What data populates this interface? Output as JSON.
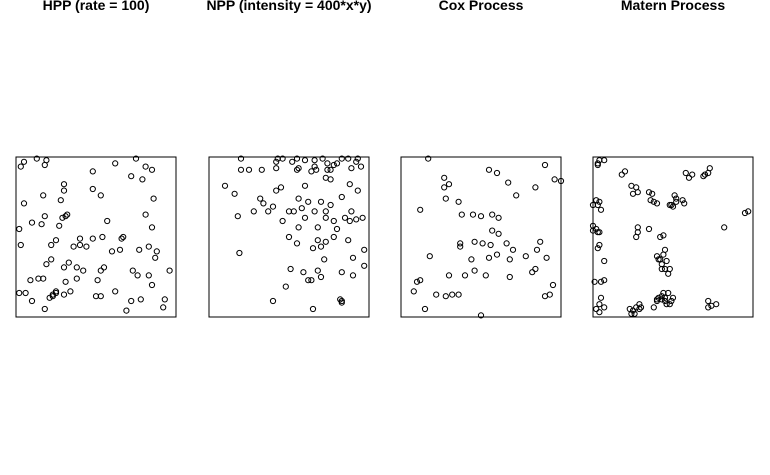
{
  "chart_data": [
    {
      "type": "scatter",
      "title": "HPP (rate = 100)",
      "xlim": [
        0,
        1
      ],
      "ylim": [
        0,
        1
      ],
      "points": [
        [
          0.05,
          0.97
        ],
        [
          0.03,
          0.94
        ],
        [
          0.13,
          0.99
        ],
        [
          0.18,
          0.95
        ],
        [
          0.19,
          0.98
        ],
        [
          0.48,
          0.91
        ],
        [
          0.62,
          0.96
        ],
        [
          0.75,
          0.99
        ],
        [
          0.81,
          0.94
        ],
        [
          0.85,
          0.92
        ],
        [
          0.79,
          0.86
        ],
        [
          0.72,
          0.88
        ],
        [
          0.3,
          0.83
        ],
        [
          0.3,
          0.79
        ],
        [
          0.48,
          0.8
        ],
        [
          0.53,
          0.76
        ],
        [
          0.17,
          0.76
        ],
        [
          0.05,
          0.71
        ],
        [
          0.28,
          0.73
        ],
        [
          0.86,
          0.74
        ],
        [
          0.81,
          0.64
        ],
        [
          0.31,
          0.63
        ],
        [
          0.29,
          0.62
        ],
        [
          0.18,
          0.63
        ],
        [
          0.32,
          0.64
        ],
        [
          0.1,
          0.59
        ],
        [
          0.27,
          0.57
        ],
        [
          0.16,
          0.58
        ],
        [
          0.57,
          0.6
        ],
        [
          0.02,
          0.55
        ],
        [
          0.85,
          0.56
        ],
        [
          0.25,
          0.48
        ],
        [
          0.48,
          0.49
        ],
        [
          0.54,
          0.5
        ],
        [
          0.03,
          0.45
        ],
        [
          0.44,
          0.44
        ],
        [
          0.6,
          0.41
        ],
        [
          0.65,
          0.42
        ],
        [
          0.4,
          0.45
        ],
        [
          0.66,
          0.49
        ],
        [
          0.4,
          0.49
        ],
        [
          0.67,
          0.5
        ],
        [
          0.38,
          0.31
        ],
        [
          0.53,
          0.29
        ],
        [
          0.83,
          0.44
        ],
        [
          0.88,
          0.41
        ],
        [
          0.77,
          0.42
        ],
        [
          0.36,
          0.44
        ],
        [
          0.22,
          0.36
        ],
        [
          0.22,
          0.45
        ],
        [
          0.87,
          0.37
        ],
        [
          0.19,
          0.33
        ],
        [
          0.33,
          0.34
        ],
        [
          0.3,
          0.31
        ],
        [
          0.42,
          0.29
        ],
        [
          0.55,
          0.31
        ],
        [
          0.85,
          0.2
        ],
        [
          0.83,
          0.26
        ],
        [
          0.73,
          0.29
        ],
        [
          0.96,
          0.29
        ],
        [
          0.76,
          0.26
        ],
        [
          0.17,
          0.24
        ],
        [
          0.38,
          0.24
        ],
        [
          0.51,
          0.23
        ],
        [
          0.09,
          0.23
        ],
        [
          0.14,
          0.24
        ],
        [
          0.34,
          0.16
        ],
        [
          0.31,
          0.22
        ],
        [
          0.06,
          0.15
        ],
        [
          0.23,
          0.13
        ],
        [
          0.25,
          0.15
        ],
        [
          0.21,
          0.12
        ],
        [
          0.23,
          0.14
        ],
        [
          0.3,
          0.14
        ],
        [
          0.25,
          0.16
        ],
        [
          0.5,
          0.13
        ],
        [
          0.53,
          0.13
        ],
        [
          0.62,
          0.16
        ],
        [
          0.72,
          0.1
        ],
        [
          0.78,
          0.11
        ],
        [
          0.1,
          0.1
        ],
        [
          0.18,
          0.05
        ],
        [
          0.69,
          0.04
        ],
        [
          0.92,
          0.06
        ],
        [
          0.93,
          0.11
        ],
        [
          0.02,
          0.15
        ]
      ]
    },
    {
      "type": "scatter",
      "title": "NPP (intensity = 400*x*y)",
      "xlim": [
        0,
        1
      ],
      "ylim": [
        0,
        1
      ],
      "points": [
        [
          0.2,
          0.99
        ],
        [
          0.42,
          0.97
        ],
        [
          0.43,
          0.99
        ],
        [
          0.46,
          0.99
        ],
        [
          0.52,
          0.97
        ],
        [
          0.55,
          0.99
        ],
        [
          0.6,
          0.98
        ],
        [
          0.66,
          0.98
        ],
        [
          0.71,
          0.99
        ],
        [
          0.74,
          0.96
        ],
        [
          0.78,
          0.95
        ],
        [
          0.8,
          0.96
        ],
        [
          0.83,
          0.99
        ],
        [
          0.87,
          0.99
        ],
        [
          0.93,
          0.99
        ],
        [
          0.95,
          0.94
        ],
        [
          0.89,
          0.93
        ],
        [
          0.56,
          0.93
        ],
        [
          0.33,
          0.92
        ],
        [
          0.25,
          0.92
        ],
        [
          0.2,
          0.92
        ],
        [
          0.42,
          0.93
        ],
        [
          0.66,
          0.94
        ],
        [
          0.67,
          0.92
        ],
        [
          0.64,
          0.91
        ],
        [
          0.55,
          0.92
        ],
        [
          0.74,
          0.92
        ],
        [
          0.76,
          0.92
        ],
        [
          0.92,
          0.97
        ],
        [
          0.76,
          0.86
        ],
        [
          0.73,
          0.87
        ],
        [
          0.45,
          0.81
        ],
        [
          0.6,
          0.82
        ],
        [
          0.56,
          0.74
        ],
        [
          0.42,
          0.79
        ],
        [
          0.1,
          0.82
        ],
        [
          0.16,
          0.77
        ],
        [
          0.34,
          0.71
        ],
        [
          0.4,
          0.69
        ],
        [
          0.37,
          0.66
        ],
        [
          0.28,
          0.66
        ],
        [
          0.32,
          0.74
        ],
        [
          0.58,
          0.68
        ],
        [
          0.62,
          0.72
        ],
        [
          0.5,
          0.66
        ],
        [
          0.53,
          0.66
        ],
        [
          0.7,
          0.72
        ],
        [
          0.76,
          0.7
        ],
        [
          0.83,
          0.75
        ],
        [
          0.88,
          0.83
        ],
        [
          0.93,
          0.79
        ],
        [
          0.6,
          0.62
        ],
        [
          0.66,
          0.66
        ],
        [
          0.73,
          0.66
        ],
        [
          0.73,
          0.62
        ],
        [
          0.78,
          0.6
        ],
        [
          0.85,
          0.62
        ],
        [
          0.88,
          0.6
        ],
        [
          0.92,
          0.61
        ],
        [
          0.96,
          0.62
        ],
        [
          0.89,
          0.66
        ],
        [
          0.18,
          0.63
        ],
        [
          0.46,
          0.6
        ],
        [
          0.56,
          0.56
        ],
        [
          0.68,
          0.56
        ],
        [
          0.78,
          0.5
        ],
        [
          0.8,
          0.55
        ],
        [
          0.87,
          0.48
        ],
        [
          0.97,
          0.42
        ],
        [
          0.5,
          0.5
        ],
        [
          0.55,
          0.46
        ],
        [
          0.65,
          0.43
        ],
        [
          0.7,
          0.44
        ],
        [
          0.68,
          0.48
        ],
        [
          0.73,
          0.47
        ],
        [
          0.9,
          0.37
        ],
        [
          0.97,
          0.32
        ],
        [
          0.83,
          0.28
        ],
        [
          0.9,
          0.26
        ],
        [
          0.68,
          0.29
        ],
        [
          0.64,
          0.23
        ],
        [
          0.51,
          0.3
        ],
        [
          0.59,
          0.28
        ],
        [
          0.72,
          0.36
        ],
        [
          0.19,
          0.4
        ],
        [
          0.7,
          0.25
        ],
        [
          0.48,
          0.19
        ],
        [
          0.62,
          0.23
        ],
        [
          0.82,
          0.11
        ],
        [
          0.83,
          0.09
        ],
        [
          0.4,
          0.1
        ],
        [
          0.65,
          0.05
        ],
        [
          0.83,
          0.1
        ]
      ]
    },
    {
      "type": "scatter",
      "title": "Cox Process",
      "xlim": [
        0,
        1
      ],
      "ylim": [
        0,
        1
      ],
      "points": [
        [
          0.17,
          0.99
        ],
        [
          0.27,
          0.87
        ],
        [
          0.3,
          0.83
        ],
        [
          0.27,
          0.81
        ],
        [
          0.55,
          0.92
        ],
        [
          0.6,
          0.9
        ],
        [
          0.67,
          0.84
        ],
        [
          0.96,
          0.86
        ],
        [
          1.0,
          0.85
        ],
        [
          0.9,
          0.95
        ],
        [
          0.72,
          0.76
        ],
        [
          0.84,
          0.81
        ],
        [
          0.28,
          0.74
        ],
        [
          0.36,
          0.72
        ],
        [
          0.38,
          0.64
        ],
        [
          0.45,
          0.64
        ],
        [
          0.5,
          0.63
        ],
        [
          0.57,
          0.64
        ],
        [
          0.61,
          0.62
        ],
        [
          0.12,
          0.67
        ],
        [
          0.37,
          0.46
        ],
        [
          0.46,
          0.47
        ],
        [
          0.37,
          0.44
        ],
        [
          0.51,
          0.46
        ],
        [
          0.56,
          0.45
        ],
        [
          0.57,
          0.54
        ],
        [
          0.61,
          0.52
        ],
        [
          0.66,
          0.46
        ],
        [
          0.7,
          0.42
        ],
        [
          0.78,
          0.38
        ],
        [
          0.85,
          0.42
        ],
        [
          0.87,
          0.47
        ],
        [
          0.18,
          0.38
        ],
        [
          0.44,
          0.36
        ],
        [
          0.55,
          0.37
        ],
        [
          0.6,
          0.39
        ],
        [
          0.68,
          0.36
        ],
        [
          0.84,
          0.3
        ],
        [
          0.91,
          0.37
        ],
        [
          0.12,
          0.23
        ],
        [
          0.1,
          0.22
        ],
        [
          0.3,
          0.26
        ],
        [
          0.4,
          0.26
        ],
        [
          0.46,
          0.29
        ],
        [
          0.53,
          0.26
        ],
        [
          0.68,
          0.25
        ],
        [
          0.82,
          0.28
        ],
        [
          0.95,
          0.2
        ],
        [
          0.93,
          0.14
        ],
        [
          0.9,
          0.13
        ],
        [
          0.22,
          0.14
        ],
        [
          0.28,
          0.13
        ],
        [
          0.32,
          0.14
        ],
        [
          0.36,
          0.14
        ],
        [
          0.08,
          0.16
        ],
        [
          0.15,
          0.05
        ],
        [
          0.5,
          0.01
        ]
      ]
    },
    {
      "type": "scatter",
      "title": "Matern Process",
      "xlim": [
        0,
        1
      ],
      "ylim": [
        0,
        1
      ],
      "points": [
        [
          0.04,
          0.98
        ],
        [
          0.03,
          0.96
        ],
        [
          0.07,
          0.98
        ],
        [
          0.03,
          0.95
        ],
        [
          0.2,
          0.91
        ],
        [
          0.18,
          0.89
        ],
        [
          0.24,
          0.82
        ],
        [
          0.27,
          0.81
        ],
        [
          0.25,
          0.77
        ],
        [
          0.28,
          0.78
        ],
        [
          0.35,
          0.78
        ],
        [
          0.37,
          0.77
        ],
        [
          0.36,
          0.73
        ],
        [
          0.38,
          0.72
        ],
        [
          0.4,
          0.71
        ],
        [
          0.51,
          0.76
        ],
        [
          0.52,
          0.74
        ],
        [
          0.49,
          0.7
        ],
        [
          0.5,
          0.69
        ],
        [
          0.48,
          0.7
        ],
        [
          0.56,
          0.73
        ],
        [
          0.57,
          0.71
        ],
        [
          0.52,
          0.72
        ],
        [
          0.58,
          0.9
        ],
        [
          0.6,
          0.87
        ],
        [
          0.62,
          0.89
        ],
        [
          0.7,
          0.89
        ],
        [
          0.72,
          0.9
        ],
        [
          0.69,
          0.88
        ],
        [
          0.73,
          0.93
        ],
        [
          0.95,
          0.65
        ],
        [
          0.97,
          0.66
        ],
        [
          0.82,
          0.56
        ],
        [
          0.0,
          0.7
        ],
        [
          0.03,
          0.7
        ],
        [
          0.05,
          0.67
        ],
        [
          0.02,
          0.73
        ],
        [
          0.04,
          0.72
        ],
        [
          0.0,
          0.54
        ],
        [
          0.02,
          0.55
        ],
        [
          0.04,
          0.53
        ],
        [
          0.03,
          0.53
        ],
        [
          0.0,
          0.57
        ],
        [
          0.04,
          0.45
        ],
        [
          0.03,
          0.43
        ],
        [
          0.28,
          0.56
        ],
        [
          0.27,
          0.5
        ],
        [
          0.28,
          0.53
        ],
        [
          0.35,
          0.55
        ],
        [
          0.42,
          0.5
        ],
        [
          0.44,
          0.51
        ],
        [
          0.45,
          0.42
        ],
        [
          0.4,
          0.38
        ],
        [
          0.42,
          0.36
        ],
        [
          0.46,
          0.35
        ],
        [
          0.43,
          0.33
        ],
        [
          0.45,
          0.3
        ],
        [
          0.48,
          0.3
        ],
        [
          0.47,
          0.27
        ],
        [
          0.43,
          0.3
        ],
        [
          0.44,
          0.39
        ],
        [
          0.41,
          0.36
        ],
        [
          0.07,
          0.35
        ],
        [
          0.07,
          0.23
        ],
        [
          0.05,
          0.22
        ],
        [
          0.05,
          0.12
        ],
        [
          0.04,
          0.08
        ],
        [
          0.07,
          0.06
        ],
        [
          0.02,
          0.05
        ],
        [
          0.04,
          0.03
        ],
        [
          0.01,
          0.22
        ],
        [
          0.25,
          0.04
        ],
        [
          0.23,
          0.05
        ],
        [
          0.27,
          0.06
        ],
        [
          0.3,
          0.06
        ],
        [
          0.29,
          0.08
        ],
        [
          0.24,
          0.02
        ],
        [
          0.26,
          0.02
        ],
        [
          0.29,
          0.05
        ],
        [
          0.38,
          0.06
        ],
        [
          0.4,
          0.1
        ],
        [
          0.41,
          0.12
        ],
        [
          0.43,
          0.13
        ],
        [
          0.44,
          0.15
        ],
        [
          0.47,
          0.15
        ],
        [
          0.43,
          0.11
        ],
        [
          0.45,
          0.12
        ],
        [
          0.49,
          0.1
        ],
        [
          0.46,
          0.08
        ],
        [
          0.48,
          0.08
        ],
        [
          0.5,
          0.12
        ],
        [
          0.4,
          0.11
        ],
        [
          0.45,
          0.1
        ],
        [
          0.72,
          0.1
        ],
        [
          0.74,
          0.07
        ],
        [
          0.77,
          0.08
        ],
        [
          0.72,
          0.06
        ]
      ]
    }
  ]
}
